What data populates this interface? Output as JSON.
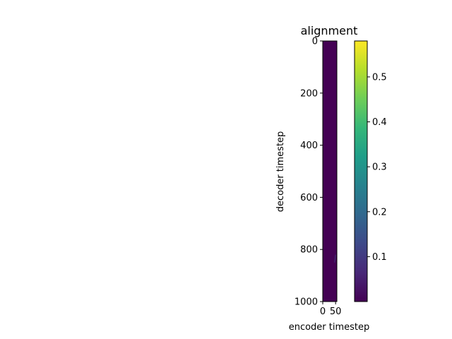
{
  "chart_data": {
    "type": "heatmap",
    "title": "alignment",
    "xlabel": "encoder timestep",
    "ylabel": "decoder timestep",
    "x_range": [
      0,
      55
    ],
    "y_range": [
      0,
      1000
    ],
    "y_inverted": true,
    "x_ticks": [
      0,
      50
    ],
    "y_ticks": [
      0,
      200,
      400,
      600,
      800,
      1000
    ],
    "colormap": "viridis",
    "dominant_value": 0.0,
    "colorbar": {
      "range": [
        0.0,
        0.58
      ],
      "ticks": [
        0.1,
        0.2,
        0.3,
        0.4,
        0.5
      ]
    },
    "faint_feature": {
      "x": 50,
      "y_range": [
        820,
        850
      ],
      "value": 0.1
    }
  },
  "colors": {
    "background": "#ffffff",
    "heatmap_fill": "#440154",
    "axis": "#000000"
  }
}
